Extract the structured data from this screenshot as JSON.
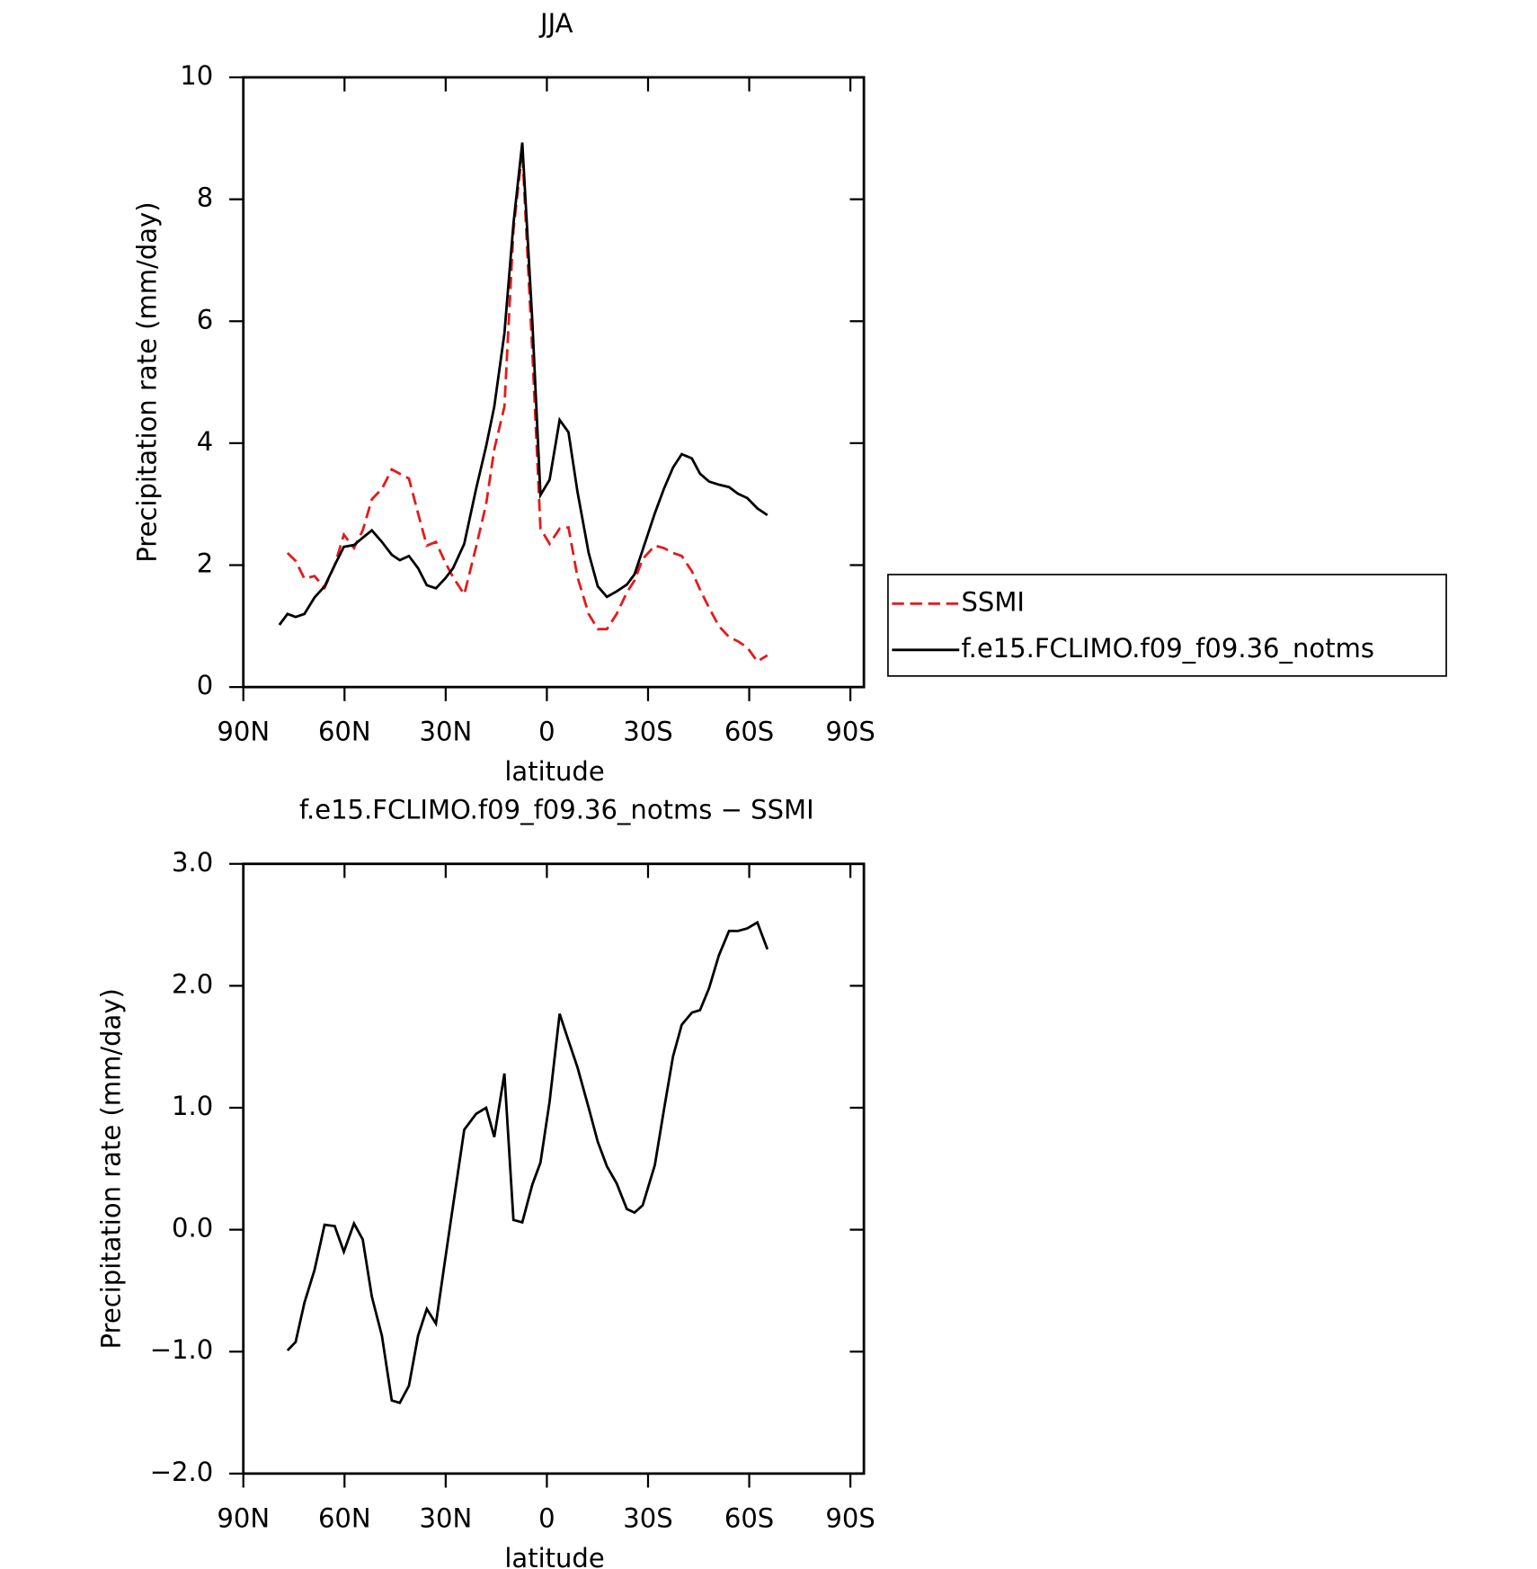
{
  "chart_data": [
    {
      "type": "line",
      "title": "JJA",
      "xlabel": "latitude",
      "ylabel": "Precipitation rate (mm/day)",
      "x": [
        79.3,
        76.9,
        74.5,
        71.9,
        68.9,
        65.9,
        62.9,
        60.2,
        57.2,
        54.6,
        51.9,
        48.9,
        46.0,
        43.6,
        40.9,
        38.2,
        35.6,
        32.9,
        30.2,
        27.8,
        24.5,
        21.0,
        18.0,
        15.6,
        12.6,
        9.9,
        7.3,
        4.3,
        1.9,
        -0.8,
        -3.8,
        -6.4,
        -9.1,
        -12.4,
        -15.1,
        -17.8,
        -20.7,
        -23.7,
        -26.0,
        -28.4,
        -32.0,
        -34.7,
        -37.4,
        -40.0,
        -43.0,
        -45.4,
        -48.1,
        -51.0,
        -54.0,
        -56.7,
        -59.4,
        -62.4,
        -65.4
      ],
      "series": [
        {
          "name": "SSMI",
          "color": "#e41a1c",
          "linestyle": "dashed",
          "values": [
            null,
            2.2,
            2.07,
            1.78,
            1.82,
            1.63,
            2.0,
            2.5,
            2.28,
            2.57,
            3.08,
            3.25,
            3.57,
            3.5,
            3.42,
            2.85,
            2.32,
            2.38,
            2.05,
            1.8,
            1.52,
            2.3,
            3.0,
            3.9,
            4.6,
            7.5,
            8.8,
            5.5,
            2.6,
            2.35,
            2.6,
            2.62,
            1.8,
            1.2,
            0.95,
            0.95,
            1.2,
            1.55,
            1.75,
            2.1,
            2.32,
            2.28,
            2.2,
            2.15,
            1.9,
            1.6,
            1.3,
            1.0,
            0.82,
            0.75,
            0.65,
            0.42,
            0.52
          ]
        },
        {
          "name": "f.e15.FCLIMO.f09_f09.36_notms",
          "color": "#000000",
          "linestyle": "solid",
          "values": [
            1.02,
            1.2,
            1.15,
            1.2,
            1.47,
            1.65,
            2.0,
            2.3,
            2.33,
            2.45,
            2.57,
            2.38,
            2.17,
            2.08,
            2.15,
            1.95,
            1.67,
            1.62,
            1.78,
            1.95,
            2.35,
            3.25,
            3.95,
            4.6,
            5.8,
            7.6,
            8.93,
            6.0,
            3.15,
            3.4,
            4.38,
            4.18,
            3.2,
            2.2,
            1.65,
            1.48,
            1.57,
            1.68,
            1.85,
            2.25,
            2.85,
            3.25,
            3.6,
            3.82,
            3.75,
            3.5,
            3.37,
            3.32,
            3.28,
            3.17,
            3.1,
            2.93,
            2.82
          ]
        }
      ],
      "xlim": [
        90,
        -94
      ],
      "xticks": [
        {
          "value": 90,
          "label": "90N"
        },
        {
          "value": 60,
          "label": "60N"
        },
        {
          "value": 30,
          "label": "30N"
        },
        0,
        {
          "value": -30,
          "label": "30S"
        },
        {
          "value": -60,
          "label": "60S"
        },
        {
          "value": -90,
          "label": "90S"
        }
      ],
      "ylim": [
        0,
        10
      ],
      "yticks": [
        0,
        2,
        4,
        6,
        8,
        10
      ],
      "legend": "outside-right"
    },
    {
      "type": "line",
      "title": "f.e15.FCLIMO.f09_f09.36_notms − SSMI",
      "xlabel": "latitude",
      "ylabel": "Precipitation rate (mm/day)",
      "x": [
        76.9,
        74.5,
        71.9,
        68.9,
        65.9,
        62.9,
        60.2,
        57.2,
        54.6,
        51.9,
        48.9,
        46.0,
        43.6,
        40.9,
        38.2,
        35.6,
        32.9,
        30.2,
        27.8,
        24.5,
        21.0,
        18.0,
        15.6,
        12.6,
        9.9,
        7.3,
        4.3,
        1.9,
        -0.8,
        -3.8,
        -6.4,
        -9.1,
        -12.4,
        -15.1,
        -17.8,
        -20.7,
        -23.7,
        -26.0,
        -28.4,
        -32.0,
        -34.7,
        -37.4,
        -40.0,
        -43.0,
        -45.4,
        -48.1,
        -51.0,
        -54.0,
        -56.7,
        -59.4,
        -62.4,
        -65.4
      ],
      "values": [
        -0.99,
        -0.92,
        -0.6,
        -0.33,
        0.04,
        0.03,
        -0.18,
        0.05,
        -0.08,
        -0.55,
        -0.87,
        -1.4,
        -1.42,
        -1.28,
        -0.87,
        -0.65,
        -0.77,
        -0.25,
        0.2,
        0.82,
        0.95,
        1.0,
        0.76,
        1.28,
        0.08,
        0.06,
        0.37,
        0.55,
        1.05,
        1.77,
        1.55,
        1.33,
        1.0,
        0.72,
        0.52,
        0.38,
        0.17,
        0.14,
        0.2,
        0.53,
        0.98,
        1.42,
        1.68,
        1.78,
        1.8,
        1.98,
        2.25,
        2.45,
        2.45,
        2.47,
        2.52,
        2.3
      ],
      "color": "#000000",
      "xlim": [
        90,
        -94
      ],
      "xticks": [
        {
          "value": 90,
          "label": "90N"
        },
        {
          "value": 60,
          "label": "60N"
        },
        {
          "value": 30,
          "label": "30N"
        },
        0,
        {
          "value": -30,
          "label": "30S"
        },
        {
          "value": -60,
          "label": "60S"
        },
        {
          "value": -90,
          "label": "90S"
        }
      ],
      "ylim": [
        -2,
        3
      ],
      "yticks": [
        {
          "value": -2,
          "label": "−2.0"
        },
        {
          "value": -1,
          "label": "−1.0"
        },
        {
          "value": 0,
          "label": "0.0"
        },
        {
          "value": 1,
          "label": "1.0"
        },
        {
          "value": 2,
          "label": "2.0"
        },
        {
          "value": 3,
          "label": "3.0"
        }
      ]
    }
  ]
}
